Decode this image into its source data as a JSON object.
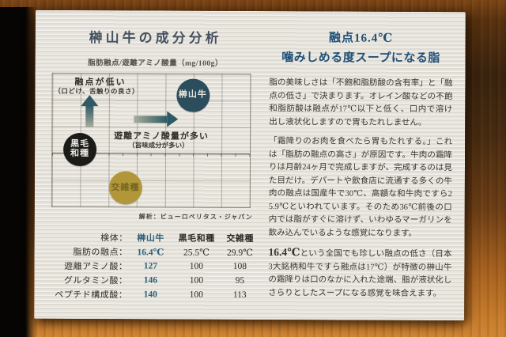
{
  "meta": {
    "description": "Photograph of a printed analysis card for Sakakiyama beef lying on a wooden table"
  },
  "colors": {
    "paper": "#e9e6df",
    "left_title": "#45505f",
    "headline_blue": "#215079",
    "body_text": "#38362f",
    "teal_circle": "#2b4d5c",
    "black_circle": "#1b1b19",
    "gold_circle": "#b2973a",
    "gold_text": "#75631f",
    "arrow_teal": "#2e5a66",
    "table_highlight": "#2d6079",
    "wood_dark": "#38220e",
    "wood_bright": "#c67b2b"
  },
  "left_page": {
    "title": "榊山牛の成分分析",
    "chart_subtitle": "脂肪融点/遊離アミノ酸量（mg/100g）",
    "annotation": "解析：ビューロベリタス・ジャパン",
    "table": {
      "header_label": "検体：",
      "columns": [
        "榊山牛",
        "黒毛和種",
        "交雑種"
      ],
      "rows": [
        {
          "label": "脂肪の融点：",
          "values": [
            "16.4℃",
            "25.5℃",
            "29.9℃"
          ]
        },
        {
          "label": "遊離アミノ酸：",
          "values": [
            "127",
            "100",
            "108"
          ]
        },
        {
          "label": "グルタミン酸：",
          "values": [
            "146",
            "100",
            "95"
          ]
        },
        {
          "label": "ペプチド構成酸：",
          "values": [
            "140",
            "100",
            "113"
          ]
        }
      ]
    }
  },
  "chart_data": {
    "type": "scatter",
    "title": "脂肪融点/遊離アミノ酸量（mg/100g）",
    "x_axis_label": "遊離アミノ酸量が多い",
    "x_axis_sublabel": "（旨味成分が多い）",
    "y_axis_label": "融点が低い",
    "y_axis_sublabel": "（口どけ、舌触りの良さ）",
    "grid": true,
    "legend_position": "none",
    "annotation": "解析：ビューロベリタス・ジャパン",
    "points": [
      {
        "label": "榊山牛",
        "lines": [
          "榊山牛"
        ],
        "x": 0.71,
        "y": 0.84,
        "color": "#2b4d5c",
        "text_color": "#e9e6df"
      },
      {
        "label": "黒毛和種",
        "lines": [
          "黒毛",
          "和種"
        ],
        "x": 0.14,
        "y": 0.43,
        "color": "#1b1b19",
        "text_color": "#e9e6df"
      },
      {
        "label": "交雑種",
        "lines": [
          "交雑種"
        ],
        "x": 0.37,
        "y": 0.14,
        "color": "#b2973a",
        "text_color": "#75631f"
      }
    ]
  },
  "right_page": {
    "headline_line1": "融点16.4℃",
    "headline_line2": "噛みしめる度スープになる脂",
    "paragraphs": [
      {
        "text": "脂の美味しさは「不飽和脂肪酸の含有率」と「融点の低さ」で決まります。オレイン酸などの不飽和脂肪酸は融点が17℃以下と低く、口内で溶け出し液状化しますので胃もたれしません。"
      },
      {
        "text": "「霜降りのお肉を食べたら胃もたれする。」これは「脂肪の融点の高さ」が原因です。牛肉の霜降りは月齢24ヶ月で完成しますが、完成するのは見た目だけ。デパートや飲食店に流通する多くの牛肉の融点は国産牛で30℃、高額な和牛肉ですら25.9℃といわれています。そのため36℃前後の口内では脂がすぐに溶けず、いわゆるマーガリンを飲み込んでいるような感覚になります。"
      },
      {
        "lead": "16.4℃",
        "text": "という全国でも珍しい融点の低さ（日本3大銘柄和牛ですら融点は17℃）が特徴の榊山牛の霜降りは口のなかに入れた途端、脂が液状化しさらりとしたスープになる感覚を味合えます。"
      }
    ]
  }
}
